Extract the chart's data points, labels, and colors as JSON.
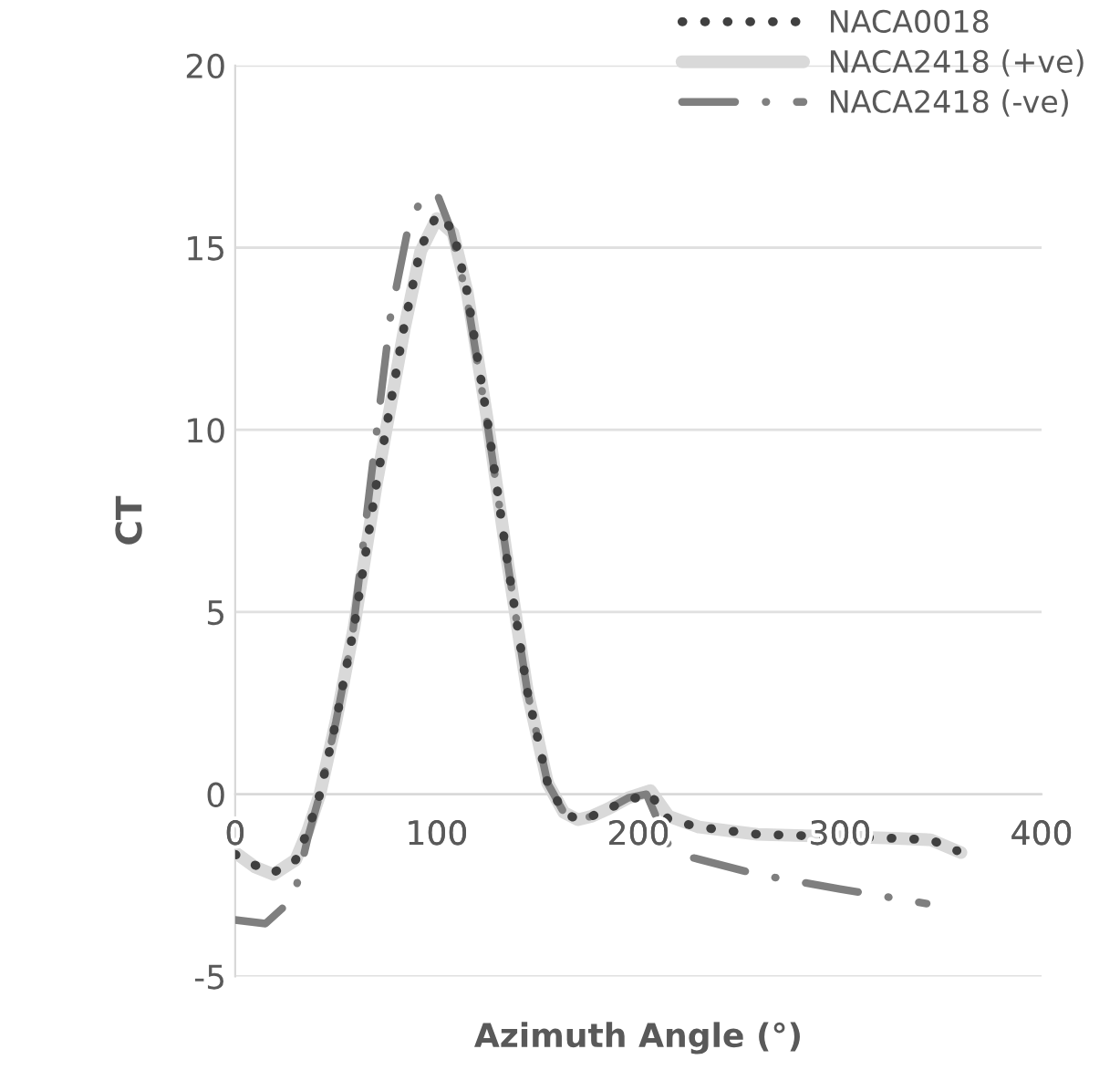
{
  "chart_data": {
    "type": "line",
    "xlabel": "Azimuth Angle (°)",
    "ylabel": "CT",
    "xlim": [
      0,
      400
    ],
    "xticks": [
      0,
      100,
      200,
      300,
      400
    ],
    "ylim": [
      -5,
      20
    ],
    "yticks": [
      -5,
      0,
      5,
      10,
      15,
      20
    ],
    "grid": "y",
    "legend": "top right",
    "marker": "none",
    "series": [
      {
        "name": "NACA0018",
        "color": "#404040",
        "line_style": "dotted",
        "x": [
          0,
          10,
          19,
          30,
          36,
          42,
          50,
          59,
          70,
          84,
          92,
          100,
          108,
          115,
          125,
          135,
          145,
          155,
          163,
          170,
          177,
          185,
          195,
          206,
          215,
          230,
          259,
          290,
          323,
          345,
          358
        ],
        "values": [
          -1.65,
          -1.95,
          -2.15,
          -1.8,
          -1.0,
          0,
          2.0,
          4.6,
          8.5,
          12.9,
          15.0,
          15.9,
          15.5,
          13.8,
          10.3,
          6.4,
          2.8,
          0.3,
          -0.5,
          -0.7,
          -0.6,
          -0.4,
          -0.15,
          0,
          -0.7,
          -0.9,
          -1.1,
          -1.15,
          -1.2,
          -1.25,
          -1.55
        ]
      },
      {
        "name": "NACA2418 (+ve)",
        "color": "#d9d9d9",
        "line_style": "solid",
        "x": [
          0,
          10,
          19,
          30,
          36,
          42,
          50,
          59,
          70,
          84,
          92,
          100,
          108,
          115,
          125,
          135,
          145,
          155,
          163,
          170,
          177,
          185,
          195,
          206,
          215,
          230,
          259,
          290,
          323,
          345,
          360
        ],
        "values": [
          -1.6,
          -2.0,
          -2.2,
          -1.8,
          -1.0,
          0,
          2.0,
          4.6,
          8.5,
          12.8,
          14.9,
          15.8,
          15.4,
          13.8,
          10.3,
          6.4,
          2.8,
          0.3,
          -0.5,
          -0.7,
          -0.6,
          -0.4,
          -0.1,
          0.1,
          -0.6,
          -0.9,
          -1.1,
          -1.15,
          -1.2,
          -1.25,
          -1.6
        ]
      },
      {
        "name": "NACA2418 (-ve)",
        "color": "#7f7f7f",
        "line_style": "dashdot",
        "x": [
          0,
          15,
          29,
          36,
          42,
          50,
          58,
          67,
          77,
          86,
          93,
          100,
          107,
          115,
          125,
          135,
          145,
          155,
          163,
          170,
          177,
          185,
          195,
          204,
          215,
          224,
          259,
          300,
          343
        ],
        "values": [
          -3.45,
          -3.55,
          -2.85,
          -1.2,
          0,
          2.0,
          4.3,
          8.5,
          13.1,
          15.6,
          16.4,
          16.5,
          15.5,
          13.6,
          10.2,
          6.4,
          2.8,
          0.3,
          -0.5,
          -0.7,
          -0.6,
          -0.4,
          -0.1,
          0,
          -1.4,
          -1.7,
          -2.2,
          -2.6,
          -3.0
        ]
      }
    ]
  }
}
